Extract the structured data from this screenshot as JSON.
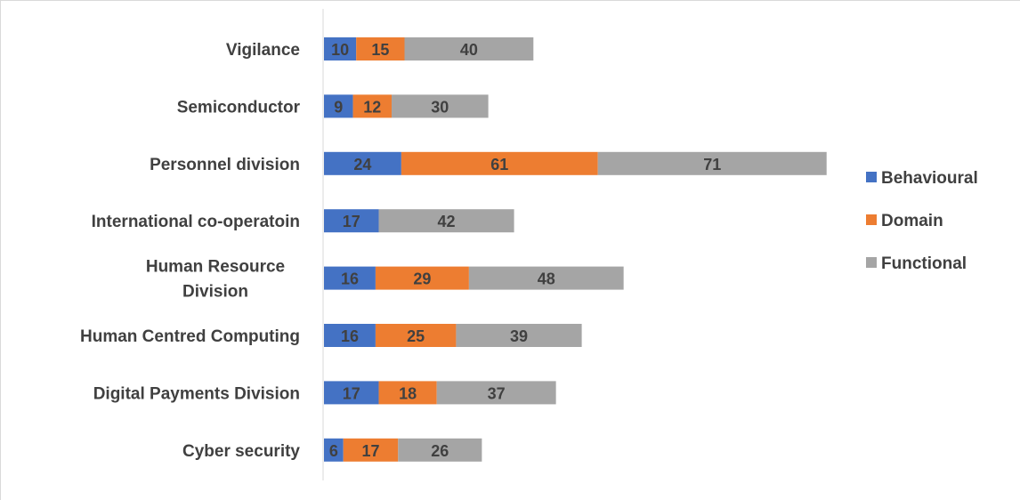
{
  "chart_data": {
    "type": "bar",
    "orientation": "horizontal",
    "stacked": true,
    "categories": [
      "Vigilance",
      "Semiconductor",
      "Personnel division",
      "International co-operatoin",
      "Human Resource Division",
      "Human Centred Computing",
      "Digital Payments Division",
      "Cyber security"
    ],
    "series": [
      {
        "name": "Behavioural",
        "color": "#4472c4",
        "values": [
          10,
          9,
          24,
          17,
          16,
          16,
          17,
          6
        ]
      },
      {
        "name": "Domain",
        "color": "#ed7d31",
        "values": [
          15,
          12,
          61,
          null,
          29,
          25,
          18,
          17
        ]
      },
      {
        "name": "Functional",
        "color": "#a5a5a5",
        "values": [
          40,
          30,
          71,
          42,
          48,
          39,
          37,
          26
        ]
      }
    ],
    "legend_position": "right",
    "grid": false,
    "data_labels": true
  }
}
